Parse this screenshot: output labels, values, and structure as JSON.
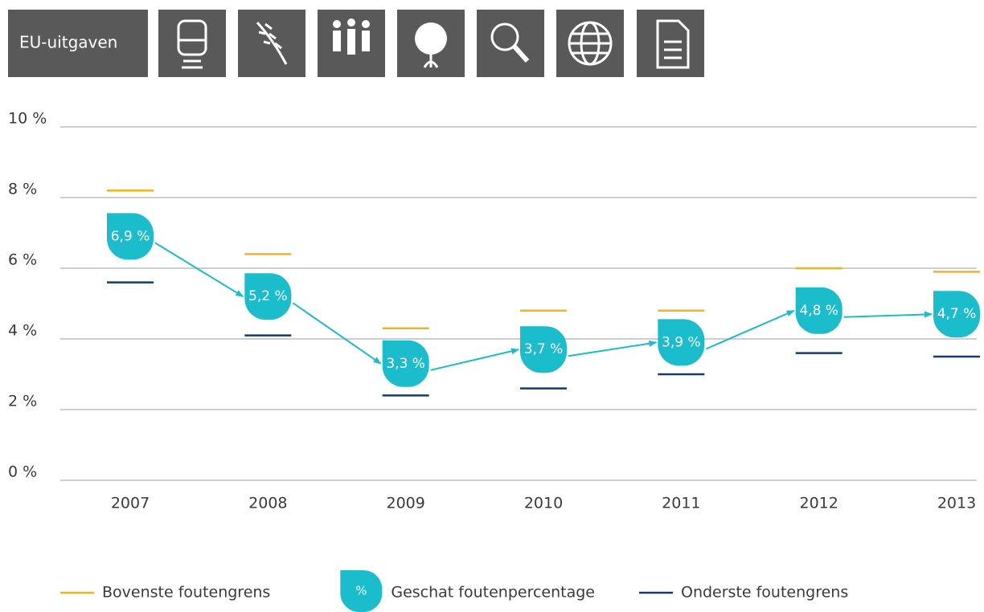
{
  "header": {
    "label": "EU-uitgaven"
  },
  "chart_data": {
    "type": "line",
    "categories": [
      "2007",
      "2008",
      "2009",
      "2010",
      "2011",
      "2012",
      "2013"
    ],
    "series": [
      {
        "name": "Bovenste foutengrens",
        "color": "#f2b31c",
        "values": [
          8.2,
          6.4,
          4.3,
          4.8,
          4.8,
          6.0,
          5.9
        ]
      },
      {
        "name": "Geschat foutenpercentage",
        "color": "#1bbccc",
        "symbol": "%",
        "values": [
          6.9,
          5.2,
          3.3,
          3.7,
          3.9,
          4.8,
          4.7
        ],
        "value_labels": [
          "6,9 %",
          "5,2 %",
          "3,3 %",
          "3,7 %",
          "3,9 %",
          "4,8 %",
          "4,7 %"
        ]
      },
      {
        "name": "Onderste foutengrens",
        "color": "#123c6b",
        "values": [
          5.6,
          4.1,
          2.4,
          2.6,
          3.0,
          3.6,
          3.5
        ]
      }
    ],
    "ylim": [
      0,
      10
    ],
    "yticks": [
      {
        "value": 0,
        "label": "0 %"
      },
      {
        "value": 2,
        "label": "2 %"
      },
      {
        "value": 4,
        "label": "4 %"
      },
      {
        "value": 6,
        "label": "6 %"
      },
      {
        "value": 8,
        "label": "8 %"
      },
      {
        "value": 10,
        "label": "10 %"
      }
    ],
    "grid": true
  }
}
